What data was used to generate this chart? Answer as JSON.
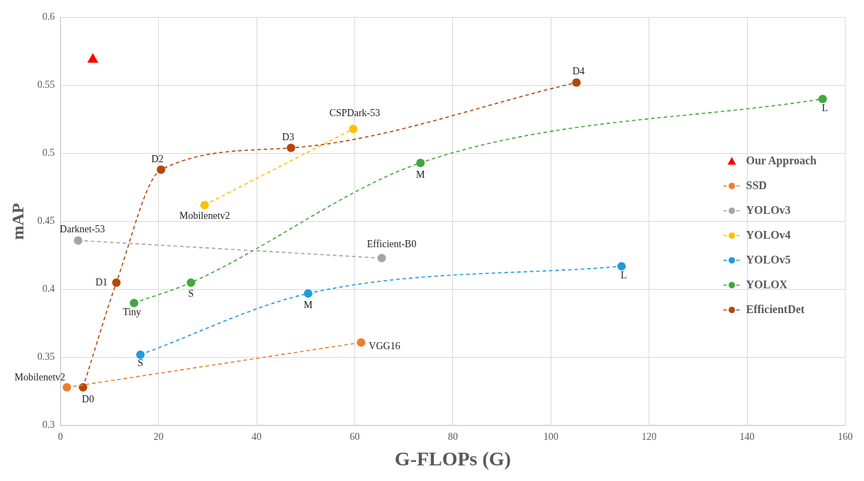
{
  "chart_data": {
    "type": "line",
    "xlabel": "G-FLOPs (G)",
    "ylabel": "mAP",
    "xlim": [
      0,
      160
    ],
    "xticks": [
      0,
      20,
      40,
      60,
      80,
      100,
      120,
      140,
      160
    ],
    "ylim": [
      0.3,
      0.6
    ],
    "yticks": [
      0.3,
      0.35,
      0.4,
      0.45,
      0.5,
      0.55,
      0.6
    ],
    "grid": true,
    "legend": "right",
    "marker": "circle",
    "line_style": "dashed",
    "series": [
      {
        "name": "Our Approach",
        "type": "scatter",
        "marker": "triangle",
        "color": "#ff0000",
        "x": [
          6.6
        ],
        "values": [
          0.569
        ]
      },
      {
        "name": "SSD",
        "color": "#ed7d31",
        "x": [
          1.3,
          61.3
        ],
        "values": [
          0.328,
          0.361
        ]
      },
      {
        "name": "YOLOv3",
        "color": "#a5a5a5",
        "x": [
          3.6,
          65.5
        ],
        "values": [
          0.436,
          0.423
        ]
      },
      {
        "name": "YOLOv4",
        "color": "#ffc000",
        "x": [
          29.4,
          59.7
        ],
        "values": [
          0.462,
          0.518
        ]
      },
      {
        "name": "YOLOv5",
        "color": "#1f9bde",
        "x": [
          16.3,
          50.5,
          114.4
        ],
        "values": [
          0.352,
          0.397,
          0.417
        ]
      },
      {
        "name": "YOLOX",
        "color": "#41a83b",
        "x": [
          15.0,
          26.6,
          73.4,
          155.4
        ],
        "values": [
          0.39,
          0.405,
          0.493,
          0.54
        ]
      },
      {
        "name": "EfficientDet",
        "color": "#b5470b",
        "x": [
          4.6,
          11.4,
          20.5,
          47.0,
          105.2
        ],
        "values": [
          0.328,
          0.405,
          0.488,
          0.504,
          0.552
        ]
      }
    ],
    "annotations": [
      {
        "text": "Mobilenetv2",
        "x": 1.3,
        "y": 0.328
      },
      {
        "text": "VGG16",
        "x": 61.3,
        "y": 0.361
      },
      {
        "text": "Darknet-53",
        "x": 3.6,
        "y": 0.436
      },
      {
        "text": "Efficient-B0",
        "x": 65.5,
        "y": 0.423
      },
      {
        "text": "Mobilenetv2",
        "x": 29.4,
        "y": 0.462
      },
      {
        "text": "CSPDark-53",
        "x": 59.7,
        "y": 0.518
      },
      {
        "text": "S",
        "x": 16.3,
        "y": 0.352
      },
      {
        "text": "M",
        "x": 50.5,
        "y": 0.397
      },
      {
        "text": "L",
        "x": 114.4,
        "y": 0.417
      },
      {
        "text": "Tiny",
        "x": 15.0,
        "y": 0.39
      },
      {
        "text": "S",
        "x": 26.6,
        "y": 0.405
      },
      {
        "text": "M",
        "x": 73.4,
        "y": 0.493
      },
      {
        "text": "L",
        "x": 155.4,
        "y": 0.54
      },
      {
        "text": "D0",
        "x": 4.6,
        "y": 0.328
      },
      {
        "text": "D1",
        "x": 11.4,
        "y": 0.405
      },
      {
        "text": "D2",
        "x": 20.5,
        "y": 0.488
      },
      {
        "text": "D3",
        "x": 47.0,
        "y": 0.504
      },
      {
        "text": "D4",
        "x": 105.2,
        "y": 0.552
      }
    ]
  }
}
